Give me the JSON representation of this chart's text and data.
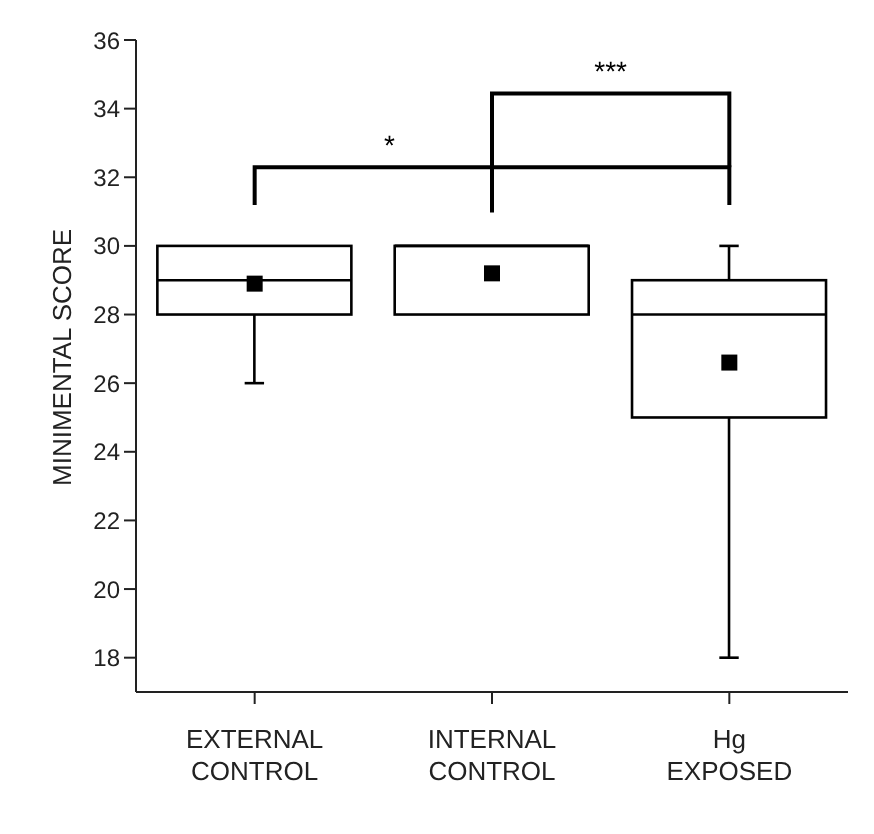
{
  "chart_data": {
    "type": "box",
    "ylabel": "MINIMENTAL SCORE",
    "categories": [
      "EXTERNAL CONTROL",
      "INTERNAL CONTROL",
      "Hg EXPOSED"
    ],
    "color": "#000000",
    "marker": "square",
    "boxes": [
      {
        "low": 26,
        "q1": 28,
        "median": 29,
        "q3": 30,
        "high": 30,
        "mean": 28.9
      },
      {
        "low": 28,
        "q1": 28,
        "median": 30,
        "q3": 30,
        "high": 30,
        "mean": 29.2
      },
      {
        "low": 18,
        "q1": 25,
        "median": 28,
        "q3": 29,
        "high": 30,
        "mean": 26.6
      }
    ],
    "ylim": [
      17,
      36
    ],
    "yticks": [
      18,
      20,
      22,
      24,
      26,
      28,
      30,
      32,
      34,
      36
    ],
    "grid": false,
    "annotations": [
      "*",
      "***"
    ]
  }
}
